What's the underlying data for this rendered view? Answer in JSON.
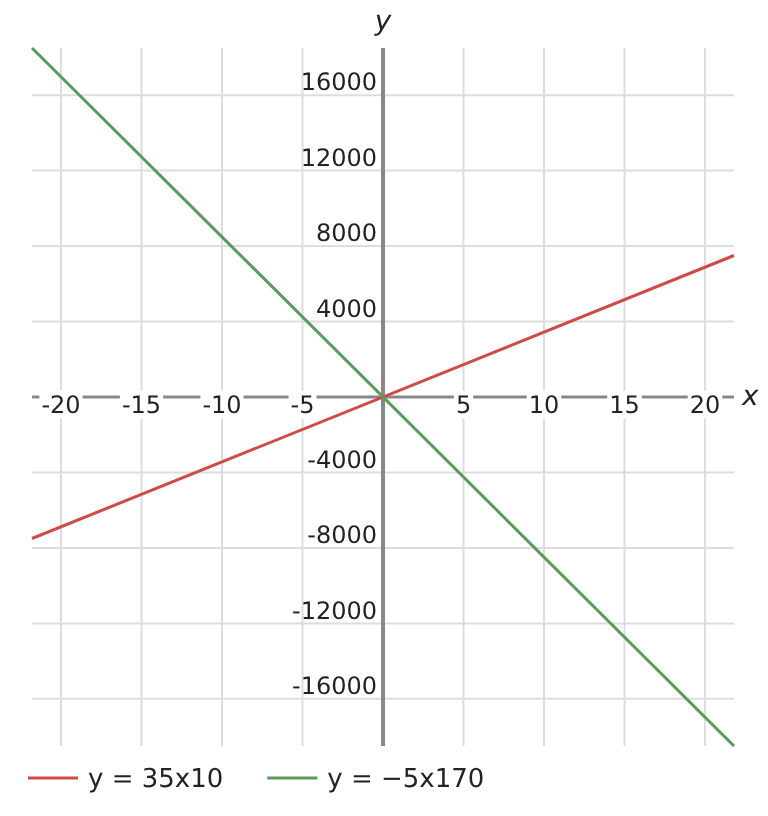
{
  "chart_data": {
    "type": "line",
    "xlabel": "x",
    "ylabel": "y",
    "x": [
      -21.8,
      21.8
    ],
    "series": [
      {
        "name": "y = 35x10",
        "color": "#d04a4a",
        "values": [
          -7500,
          7500
        ]
      },
      {
        "name": "y = −5x170",
        "color": "#5a9a5a",
        "values": [
          18500,
          -18500
        ]
      }
    ],
    "xlim": [
      -21.8,
      21.8
    ],
    "ylim": [
      -18500,
      18500
    ],
    "xticks": [
      -20,
      -15,
      -10,
      -5,
      5,
      10,
      15,
      20
    ],
    "yticks": [
      -16000,
      -12000,
      -8000,
      -4000,
      4000,
      8000,
      12000,
      16000
    ],
    "grid": true,
    "legend": "bottom left",
    "marker": "none",
    "line_style": "solid"
  }
}
